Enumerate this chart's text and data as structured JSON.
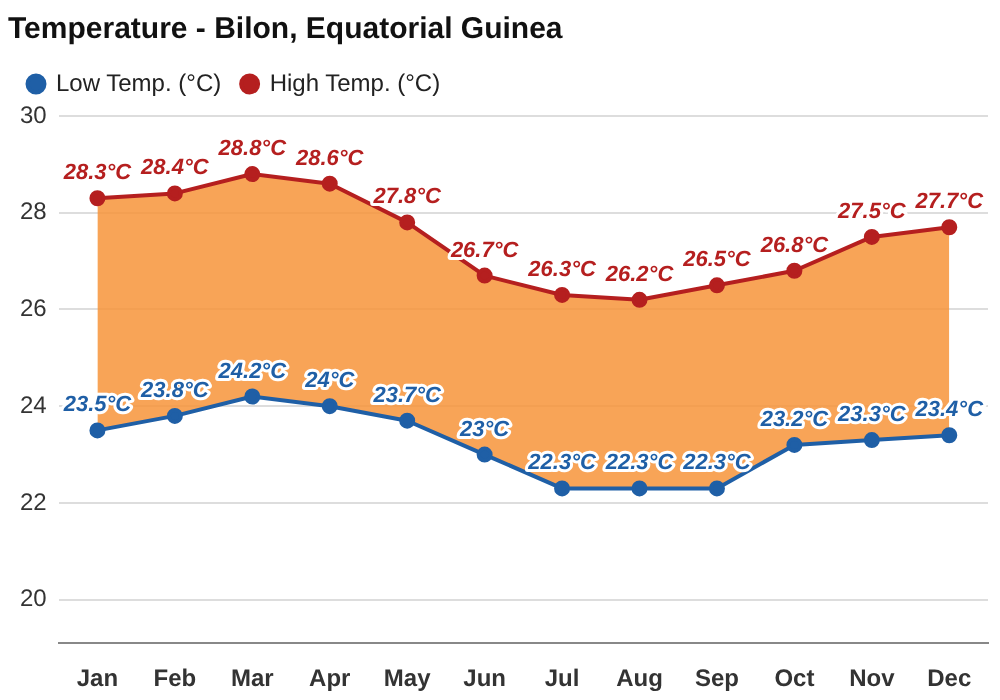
{
  "chart_data": {
    "type": "line",
    "title": "Temperature - Bilon, Equatorial Guinea",
    "categories": [
      "Jan",
      "Feb",
      "Mar",
      "Apr",
      "May",
      "Jun",
      "Jul",
      "Aug",
      "Sep",
      "Oct",
      "Nov",
      "Dec"
    ],
    "series": [
      {
        "name": "Low Temp. (°C)",
        "type": "line",
        "color": "#1f5fa6",
        "values": [
          23.5,
          23.8,
          24.2,
          24,
          23.7,
          23,
          22.3,
          22.3,
          22.3,
          23.2,
          23.3,
          23.4
        ],
        "value_labels": [
          "23.5°C",
          "23.8°C",
          "24.2°C",
          "24°C",
          "23.7°C",
          "23°C",
          "22.3°C",
          "22.3°C",
          "22.3°C",
          "23.2°C",
          "23.3°C",
          "23.4°C"
        ]
      },
      {
        "name": "High Temp. (°C)",
        "type": "area",
        "color": "#b51f1f",
        "values": [
          28.3,
          28.4,
          28.8,
          28.6,
          27.8,
          26.7,
          26.3,
          26.2,
          26.5,
          26.8,
          27.5,
          27.7
        ],
        "value_labels": [
          "28.3°C",
          "28.4°C",
          "28.8°C",
          "28.6°C",
          "27.8°C",
          "26.7°C",
          "26.3°C",
          "26.2°C",
          "26.5°C",
          "26.8°C",
          "27.5°C",
          "27.7°C"
        ]
      }
    ],
    "ylim": [
      19.1,
      30
    ],
    "yticks": [
      20,
      22,
      24,
      26,
      28,
      30
    ],
    "grid": "y",
    "legend": "top left",
    "marker": "circle",
    "line_style": "solid"
  }
}
